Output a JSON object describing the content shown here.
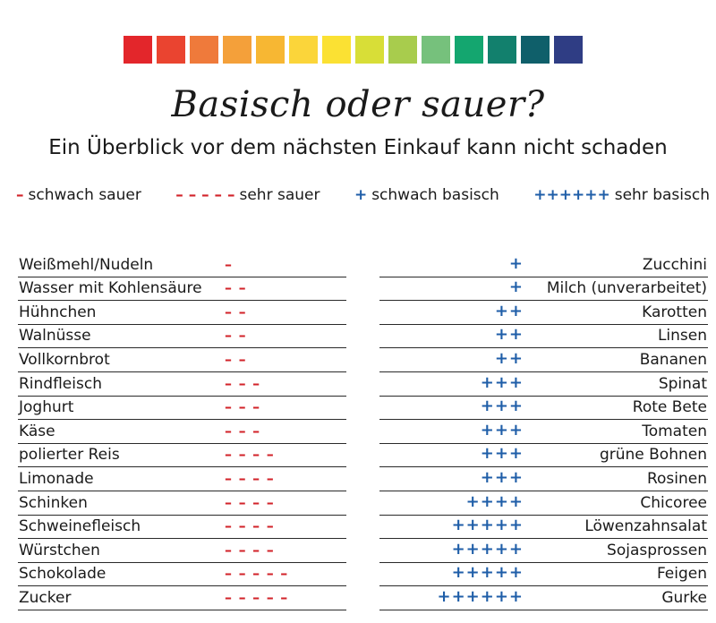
{
  "scale_colors": [
    "#e3262b",
    "#ea4430",
    "#ef7a3b",
    "#f4a03a",
    "#f7b733",
    "#fbd53a",
    "#fbe133",
    "#d8de37",
    "#a8cc4d",
    "#76c17c",
    "#14a66f",
    "#12806d",
    "#0f5f6a",
    "#2f3d84"
  ],
  "title": "Basisch oder sauer?",
  "subtitle": "Ein Überblick vor dem nächsten Einkauf kann nicht schaden",
  "legend": [
    {
      "symbol": "–",
      "label": "schwach sauer",
      "tone": "red"
    },
    {
      "symbol": "– – – – –",
      "label": "sehr sauer",
      "tone": "red"
    },
    {
      "symbol": "+",
      "label": "schwach basisch",
      "tone": "blue"
    },
    {
      "symbol": "++++++",
      "label": "sehr basisch",
      "tone": "blue"
    }
  ],
  "acidic": [
    {
      "name": "Weißmehl/Nudeln",
      "symbol": "–"
    },
    {
      "name": "Wasser mit Kohlensäure",
      "symbol": "– –"
    },
    {
      "name": "Hühnchen",
      "symbol": "– –"
    },
    {
      "name": "Walnüsse",
      "symbol": "– –"
    },
    {
      "name": "Vollkornbrot",
      "symbol": "– –"
    },
    {
      "name": "Rindfleisch",
      "symbol": "– – –"
    },
    {
      "name": "Joghurt",
      "symbol": "– – –"
    },
    {
      "name": "Käse",
      "symbol": "– – –"
    },
    {
      "name": "polierter Reis",
      "symbol": "– – – –"
    },
    {
      "name": "Limonade",
      "symbol": "– – – –"
    },
    {
      "name": "Schinken",
      "symbol": "– – – –"
    },
    {
      "name": "Schweinefleisch",
      "symbol": "– – – –"
    },
    {
      "name": "Würstchen",
      "symbol": "– – – –"
    },
    {
      "name": "Schokolade",
      "symbol": "– – – – –"
    },
    {
      "name": "Zucker",
      "symbol": "– – – – –"
    }
  ],
  "basic": [
    {
      "name": "Zucchini",
      "symbol": "+"
    },
    {
      "name": "Milch (unverarbeitet)",
      "symbol": "+"
    },
    {
      "name": "Karotten",
      "symbol": "++"
    },
    {
      "name": "Linsen",
      "symbol": "++"
    },
    {
      "name": "Bananen",
      "symbol": "++"
    },
    {
      "name": "Spinat",
      "symbol": "+++"
    },
    {
      "name": "Rote Bete",
      "symbol": "+++"
    },
    {
      "name": "Tomaten",
      "symbol": "+++"
    },
    {
      "name": "grüne Bohnen",
      "symbol": "+++"
    },
    {
      "name": "Rosinen",
      "symbol": "+++"
    },
    {
      "name": "Chicoree",
      "symbol": "++++"
    },
    {
      "name": "Löwenzahnsalat",
      "symbol": "+++++"
    },
    {
      "name": "Sojasprossen",
      "symbol": "+++++"
    },
    {
      "name": "Feigen",
      "symbol": "+++++"
    },
    {
      "name": "Gurke",
      "symbol": "++++++"
    }
  ]
}
